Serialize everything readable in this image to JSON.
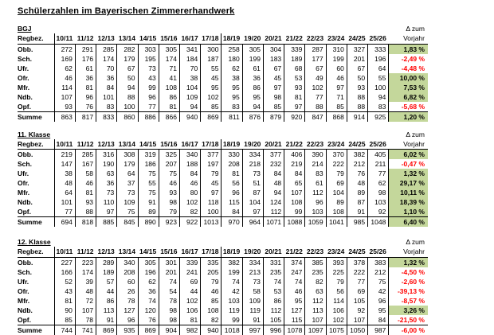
{
  "page_title": "Schülerzahlen im Bayerischen Zimmererhandwerk",
  "columns": {
    "region_header": "Regbez.",
    "years": [
      "10/11",
      "11/12",
      "12/13",
      "13/14",
      "14/15",
      "15/16",
      "16/17",
      "17/18",
      "18/19",
      "19/20",
      "20/21",
      "21/22",
      "22/23",
      "23/24",
      "24/25",
      "25/26"
    ],
    "delta_line1": "Δ zum",
    "delta_line2": "Vorjahr"
  },
  "colors": {
    "positive_delta_bg": "#c4d79b",
    "negative_delta_text": "#ff0000"
  },
  "tables": [
    {
      "label": "BGJ",
      "rows": [
        {
          "region": "Obb.",
          "values": [
            272,
            291,
            285,
            282,
            303,
            305,
            341,
            300,
            258,
            305,
            304,
            339,
            287,
            310,
            327,
            333
          ],
          "delta": "1,83 %"
        },
        {
          "region": "Sch.",
          "values": [
            169,
            176,
            174,
            179,
            195,
            174,
            184,
            187,
            180,
            199,
            183,
            189,
            177,
            199,
            201,
            196
          ],
          "delta": "-2,49 %"
        },
        {
          "region": "Ufr.",
          "values": [
            62,
            61,
            70,
            67,
            73,
            71,
            70,
            55,
            62,
            61,
            67,
            68,
            67,
            60,
            67,
            64
          ],
          "delta": "-4,48 %"
        },
        {
          "region": "Ofr.",
          "values": [
            46,
            36,
            36,
            50,
            43,
            41,
            38,
            45,
            38,
            36,
            45,
            53,
            49,
            46,
            50,
            55
          ],
          "delta": "10,00 %"
        },
        {
          "region": "Mfr.",
          "values": [
            114,
            81,
            84,
            94,
            99,
            108,
            104,
            95,
            95,
            86,
            97,
            93,
            102,
            97,
            93,
            100
          ],
          "delta": "7,53 %"
        },
        {
          "region": "Ndb.",
          "values": [
            107,
            96,
            101,
            88,
            96,
            86,
            109,
            102,
            95,
            95,
            98,
            81,
            77,
            71,
            88,
            94
          ],
          "delta": "6,82 %"
        },
        {
          "region": "Opf.",
          "values": [
            93,
            76,
            83,
            100,
            77,
            81,
            94,
            85,
            83,
            94,
            85,
            97,
            88,
            85,
            88,
            83
          ],
          "delta": "-5,68 %"
        }
      ],
      "summe": {
        "label": "Summe",
        "values": [
          863,
          817,
          833,
          860,
          886,
          866,
          940,
          869,
          811,
          876,
          879,
          920,
          847,
          868,
          914,
          925
        ],
        "delta": "1,20 %"
      }
    },
    {
      "label": "11. Klasse",
      "rows": [
        {
          "region": "Obb.",
          "values": [
            219,
            285,
            316,
            308,
            319,
            325,
            340,
            377,
            330,
            334,
            377,
            406,
            390,
            370,
            382,
            405
          ],
          "delta": "6,02 %"
        },
        {
          "region": "Sch.",
          "values": [
            147,
            167,
            190,
            179,
            186,
            207,
            188,
            197,
            208,
            218,
            232,
            219,
            214,
            222,
            212,
            211
          ],
          "delta": "-0,47 %"
        },
        {
          "region": "Ufr.",
          "values": [
            38,
            58,
            63,
            64,
            75,
            75,
            84,
            79,
            81,
            73,
            84,
            84,
            83,
            79,
            76,
            77
          ],
          "delta": "1,32 %"
        },
        {
          "region": "Ofr.",
          "values": [
            48,
            46,
            36,
            37,
            55,
            46,
            46,
            45,
            56,
            51,
            48,
            65,
            61,
            69,
            48,
            62
          ],
          "delta": "29,17 %"
        },
        {
          "region": "Mfr.",
          "values": [
            64,
            81,
            73,
            73,
            75,
            93,
            80,
            97,
            96,
            87,
            94,
            107,
            112,
            104,
            89,
            98
          ],
          "delta": "10,11 %"
        },
        {
          "region": "Ndb.",
          "values": [
            101,
            93,
            110,
            109,
            91,
            98,
            102,
            118,
            115,
            104,
            124,
            108,
            96,
            89,
            87,
            103
          ],
          "delta": "18,39 %"
        },
        {
          "region": "Opf.",
          "values": [
            77,
            88,
            97,
            75,
            89,
            79,
            82,
            100,
            84,
            97,
            112,
            99,
            103,
            108,
            91,
            92
          ],
          "delta": "1,10 %"
        }
      ],
      "summe": {
        "label": "Summe",
        "values": [
          694,
          818,
          885,
          845,
          890,
          923,
          922,
          1013,
          970,
          964,
          1071,
          1088,
          1059,
          1041,
          985,
          1048
        ],
        "delta": "6,40 %"
      }
    },
    {
      "label": "12. Klasse",
      "rows": [
        {
          "region": "Obb.",
          "values": [
            227,
            223,
            289,
            340,
            305,
            301,
            339,
            335,
            382,
            334,
            331,
            374,
            385,
            393,
            378,
            383
          ],
          "delta": "1,32 %"
        },
        {
          "region": "Sch.",
          "values": [
            166,
            174,
            189,
            208,
            196,
            201,
            241,
            205,
            199,
            213,
            235,
            247,
            235,
            225,
            222,
            212
          ],
          "delta": "-4,50 %"
        },
        {
          "region": "Ufr.",
          "values": [
            52,
            39,
            57,
            60,
            62,
            74,
            69,
            79,
            74,
            73,
            74,
            74,
            82,
            79,
            77,
            75
          ],
          "delta": "-2,60 %"
        },
        {
          "region": "Ofr.",
          "values": [
            43,
            48,
            44,
            26,
            36,
            54,
            44,
            46,
            42,
            58,
            53,
            46,
            63,
            56,
            69,
            42
          ],
          "delta": "-39,13 %"
        },
        {
          "region": "Mfr.",
          "values": [
            81,
            72,
            86,
            78,
            74,
            78,
            102,
            85,
            103,
            109,
            86,
            95,
            112,
            114,
            105,
            96
          ],
          "delta": "-8,57 %"
        },
        {
          "region": "Ndb.",
          "values": [
            90,
            107,
            113,
            127,
            120,
            98,
            106,
            108,
            119,
            119,
            112,
            127,
            113,
            106,
            92,
            95
          ],
          "delta": "3,26 %"
        },
        {
          "region": "Opf.",
          "values": [
            85,
            78,
            91,
            96,
            76,
            98,
            81,
            82,
            99,
            91,
            105,
            115,
            107,
            102,
            107,
            84
          ],
          "delta": "-21,50 %"
        }
      ],
      "summe": {
        "label": "Summe",
        "values": [
          744,
          741,
          869,
          935,
          869,
          904,
          982,
          940,
          1018,
          997,
          996,
          1078,
          1097,
          1075,
          1050,
          987
        ],
        "delta": "-6,00 %"
      }
    }
  ]
}
